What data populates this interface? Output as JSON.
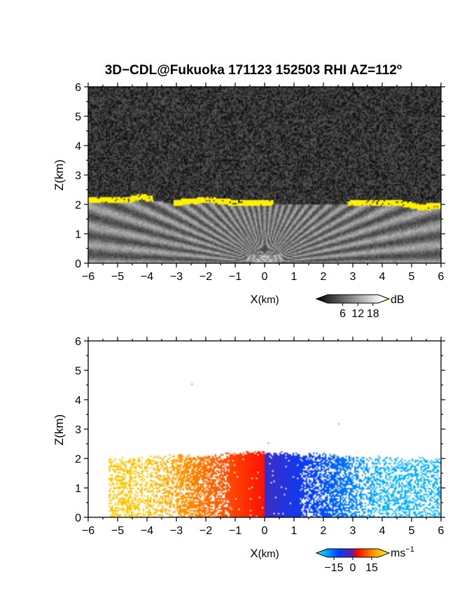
{
  "figure_title": "3D−CDL@Fukuoka 171123 152503 RHI AZ=112",
  "title_degree_mark": "o",
  "chart_data": [
    {
      "type": "heatmap",
      "id": "backscatter",
      "xlabel_main": "X",
      "xlabel_unit": "(km)",
      "ylabel": "Z(km)",
      "xlim": [
        -6,
        6
      ],
      "ylim": [
        0,
        6
      ],
      "x_ticks": [
        "−6",
        "−5",
        "−4",
        "−3",
        "−2",
        "−1",
        "0",
        "1",
        "2",
        "3",
        "4",
        "5",
        "6"
      ],
      "y_ticks": [
        "0",
        "1",
        "2",
        "3",
        "4",
        "5",
        "6"
      ],
      "colorbar": {
        "unit": "dB",
        "ticks": [
          "6",
          "12",
          "18"
        ],
        "range": [
          0,
          20
        ],
        "colors": [
          "#000000",
          "#ffffff",
          "#ffff00"
        ]
      },
      "features": {
        "noise_level_db": 4,
        "aerosol_layer_top_km": 2.0,
        "cloud_base_km": [
          [
            -4.6,
            2.1
          ],
          [
            -4.2,
            2.2
          ],
          [
            -3.0,
            2.0
          ],
          [
            -2.0,
            2.1
          ],
          [
            -1.0,
            2.0
          ],
          [
            0.2,
            2.0
          ],
          [
            2.9,
            2.0
          ],
          [
            3.8,
            2.0
          ],
          [
            4.6,
            2.0
          ],
          [
            5.3,
            1.85
          ],
          [
            6.0,
            1.9
          ]
        ],
        "cloud_value_db": 20
      }
    },
    {
      "type": "heatmap",
      "id": "radial_velocity",
      "xlabel_main": "X",
      "xlabel_unit": "(km)",
      "ylabel": "Z(km)",
      "xlim": [
        -6,
        6
      ],
      "ylim": [
        0,
        6
      ],
      "x_ticks": [
        "−6",
        "−5",
        "−4",
        "−3",
        "−2",
        "−1",
        "0",
        "1",
        "2",
        "3",
        "4",
        "5",
        "6"
      ],
      "y_ticks": [
        "0",
        "1",
        "2",
        "3",
        "4",
        "5",
        "6"
      ],
      "colorbar": {
        "unit_main": "ms",
        "unit_exp": "−1",
        "ticks": [
          "−15",
          "0",
          "15"
        ],
        "range": [
          -20,
          20
        ],
        "colors": [
          "#00ffff",
          "#0040ff",
          "#ff0000",
          "#ffff00"
        ]
      },
      "features": {
        "layer_top_km": 2.2,
        "velocity_left_ms": 15,
        "velocity_right_ms": -15,
        "isolated_points_km": [
          [
            -2.5,
            4.55
          ],
          [
            2.5,
            3.2
          ],
          [
            0.1,
            2.55
          ]
        ]
      }
    }
  ]
}
